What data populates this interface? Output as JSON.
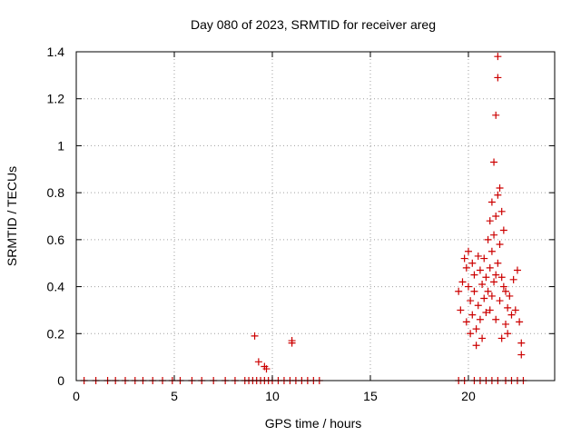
{
  "chart_data": {
    "type": "scatter",
    "title": "Day 080 of 2023, SRMTID for receiver areg",
    "xlabel": "GPS time / hours",
    "ylabel": "SRMTID / TECUs",
    "xlim": [
      0,
      24.4
    ],
    "ylim": [
      0,
      1.4
    ],
    "xticks": [
      0,
      5,
      10,
      15,
      20
    ],
    "xtick_labels": [
      "0",
      "5",
      "10",
      "15",
      "20"
    ],
    "yticks": [
      0,
      0.2,
      0.4,
      0.6,
      0.8,
      1.0,
      1.2,
      1.4
    ],
    "ytick_labels": [
      "0",
      "0.2",
      "0.4",
      "0.6",
      "0.8",
      "1",
      "1.2",
      "1.4"
    ],
    "grid": true,
    "marker": "+",
    "marker_color": "#cc0000",
    "series": [
      {
        "name": "SRMTID",
        "points": [
          [
            0.4,
            0
          ],
          [
            1.0,
            0
          ],
          [
            1.6,
            0
          ],
          [
            2.0,
            0
          ],
          [
            2.5,
            0
          ],
          [
            3.0,
            0
          ],
          [
            3.4,
            0
          ],
          [
            3.9,
            0
          ],
          [
            4.4,
            0
          ],
          [
            4.9,
            0
          ],
          [
            5.3,
            0
          ],
          [
            5.9,
            0
          ],
          [
            6.4,
            0
          ],
          [
            7.0,
            0
          ],
          [
            7.6,
            0
          ],
          [
            8.1,
            0
          ],
          [
            8.6,
            0
          ],
          [
            8.8,
            0
          ],
          [
            9.0,
            0
          ],
          [
            9.2,
            0
          ],
          [
            9.4,
            0
          ],
          [
            9.6,
            0
          ],
          [
            9.8,
            0
          ],
          [
            10.0,
            0
          ],
          [
            10.3,
            0
          ],
          [
            10.6,
            0
          ],
          [
            10.9,
            0
          ],
          [
            11.2,
            0
          ],
          [
            11.5,
            0
          ],
          [
            11.8,
            0
          ],
          [
            12.1,
            0
          ],
          [
            12.4,
            0
          ],
          [
            19.5,
            0
          ],
          [
            19.8,
            0
          ],
          [
            20.3,
            0
          ],
          [
            20.6,
            0
          ],
          [
            20.9,
            0
          ],
          [
            21.2,
            0
          ],
          [
            21.5,
            0
          ],
          [
            21.9,
            0
          ],
          [
            22.2,
            0
          ],
          [
            22.5,
            0
          ],
          [
            22.8,
            0
          ],
          [
            9.1,
            0.19
          ],
          [
            9.3,
            0.08
          ],
          [
            9.6,
            0.06
          ],
          [
            9.7,
            0.05
          ],
          [
            11.0,
            0.16
          ],
          [
            11.0,
            0.17
          ],
          [
            19.5,
            0.38
          ],
          [
            19.6,
            0.3
          ],
          [
            19.7,
            0.42
          ],
          [
            19.8,
            0.52
          ],
          [
            19.9,
            0.48
          ],
          [
            19.9,
            0.25
          ],
          [
            20.0,
            0.55
          ],
          [
            20.0,
            0.4
          ],
          [
            20.1,
            0.34
          ],
          [
            20.1,
            0.2
          ],
          [
            20.2,
            0.5
          ],
          [
            20.2,
            0.28
          ],
          [
            20.3,
            0.45
          ],
          [
            20.3,
            0.38
          ],
          [
            20.4,
            0.22
          ],
          [
            20.4,
            0.15
          ],
          [
            20.5,
            0.53
          ],
          [
            20.5,
            0.32
          ],
          [
            20.6,
            0.47
          ],
          [
            20.6,
            0.26
          ],
          [
            20.7,
            0.41
          ],
          [
            20.7,
            0.18
          ],
          [
            20.8,
            0.52
          ],
          [
            20.8,
            0.35
          ],
          [
            20.9,
            0.44
          ],
          [
            20.9,
            0.29
          ],
          [
            21.0,
            0.6
          ],
          [
            21.0,
            0.38
          ],
          [
            21.1,
            0.68
          ],
          [
            21.1,
            0.48
          ],
          [
            21.1,
            0.3
          ],
          [
            21.2,
            0.76
          ],
          [
            21.2,
            0.55
          ],
          [
            21.2,
            0.36
          ],
          [
            21.3,
            0.93
          ],
          [
            21.3,
            0.62
          ],
          [
            21.3,
            0.42
          ],
          [
            21.4,
            1.13
          ],
          [
            21.4,
            0.7
          ],
          [
            21.4,
            0.45
          ],
          [
            21.4,
            0.26
          ],
          [
            21.5,
            1.29
          ],
          [
            21.5,
            1.38
          ],
          [
            21.5,
            0.79
          ],
          [
            21.5,
            0.5
          ],
          [
            21.6,
            0.82
          ],
          [
            21.6,
            0.58
          ],
          [
            21.6,
            0.34
          ],
          [
            21.7,
            0.72
          ],
          [
            21.7,
            0.44
          ],
          [
            21.7,
            0.18
          ],
          [
            21.8,
            0.64
          ],
          [
            21.8,
            0.4
          ],
          [
            21.9,
            0.38
          ],
          [
            21.9,
            0.24
          ],
          [
            22.0,
            0.31
          ],
          [
            22.0,
            0.2
          ],
          [
            22.1,
            0.36
          ],
          [
            22.2,
            0.28
          ],
          [
            22.3,
            0.43
          ],
          [
            22.4,
            0.3
          ],
          [
            22.5,
            0.47
          ],
          [
            22.6,
            0.25
          ],
          [
            22.7,
            0.16
          ],
          [
            22.7,
            0.11
          ]
        ]
      }
    ]
  }
}
